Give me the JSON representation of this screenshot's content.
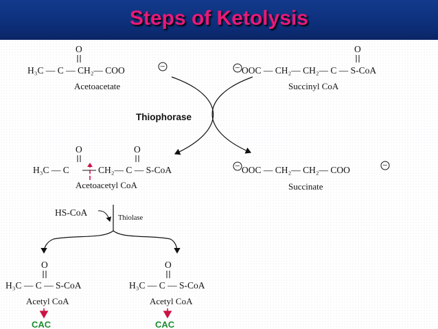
{
  "title": "Steps of Ketolysis",
  "colors": {
    "header_bg": "#0d2f7a",
    "title": "#e8197a",
    "cac": "#1a8c2e",
    "arrow_red": "#cc1144"
  },
  "diagram": {
    "enzyme_1": "Thiophorase",
    "enzyme_2": "Thiolase",
    "cofactor": "HS-CoA",
    "acetoacetate": {
      "formula_left": "H₃C — C — CH₂— COO",
      "name": "Acetoacetate"
    },
    "succinyl_coa": {
      "formula": "OOC — CH₂— CH₂— C — S-CoA",
      "name": "Succinyl CoA"
    },
    "acetoacetyl_coa": {
      "formula_left": "H₃C — C",
      "formula_right": "CH₂— C — S-CoA",
      "name": "Acetoacetyl CoA"
    },
    "succinate": {
      "formula": "OOC — CH₂— CH₂— COO",
      "name": "Succinate"
    },
    "acetyl_coa_1": {
      "formula": "H₃C — C — S-CoA",
      "name": "Acetyl CoA"
    },
    "acetyl_coa_2": {
      "formula": "H₃C — C — S-CoA",
      "name": "Acetyl CoA"
    },
    "carbonyl_o": "O",
    "minus": "−",
    "cac_1": "CAC",
    "cac_2": "CAC"
  }
}
